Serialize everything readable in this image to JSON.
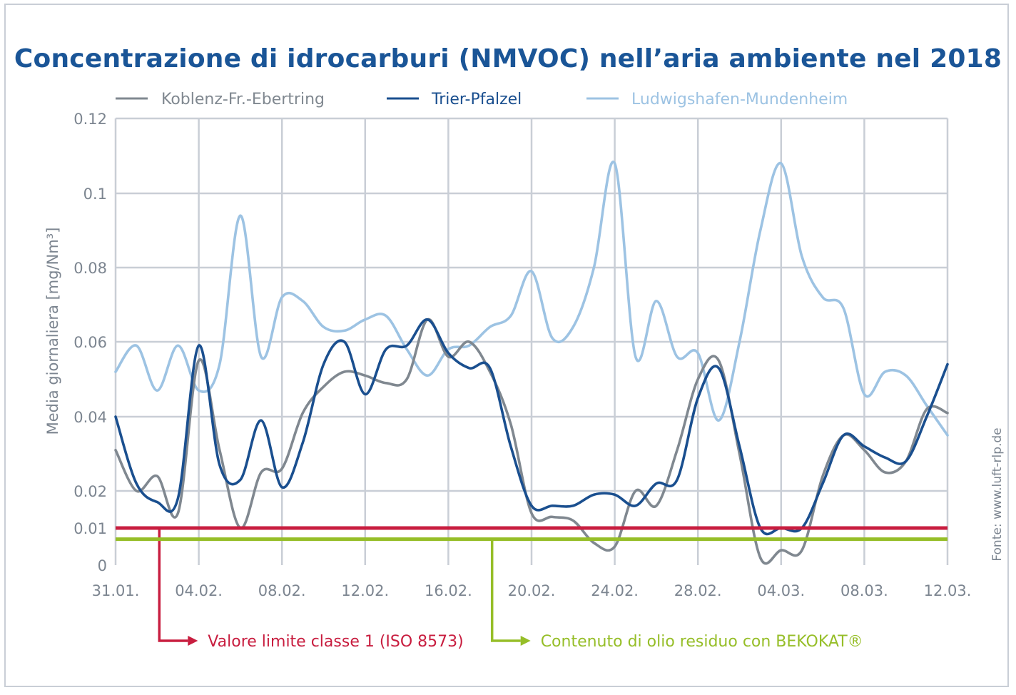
{
  "chart_data": {
    "type": "line",
    "title": "Concentrazione di idrocarburi (NMVOC) nell’aria ambiente nel 2018",
    "xlabel": "",
    "ylabel": "Media giornaliera [mg/Nm³]",
    "source": "Fonte: www.luft-rlp.de",
    "x_ticks": [
      "31.01.",
      "04.02.",
      "08.02.",
      "12.02.",
      "16.02.",
      "20.02.",
      "24.02.",
      "28.02.",
      "04.03.",
      "08.03.",
      "12.03."
    ],
    "y_ticks": [
      0,
      0.01,
      0.02,
      0.04,
      0.06,
      0.08,
      0.1,
      0.12
    ],
    "y_tick_labels": [
      "0",
      "0.01",
      "0.02",
      "0.04",
      "0.06",
      "0.08",
      "0.1",
      "0.12"
    ],
    "ylim": [
      0,
      0.12
    ],
    "grid": true,
    "legend_position": "top",
    "x": [
      "31.01.",
      "01.02.",
      "02.02.",
      "03.02.",
      "04.02.",
      "05.02.",
      "06.02.",
      "07.02.",
      "08.02.",
      "09.02.",
      "10.02.",
      "11.02.",
      "12.02.",
      "13.02.",
      "14.02.",
      "15.02.",
      "16.02.",
      "17.02.",
      "18.02.",
      "19.02.",
      "20.02.",
      "21.02.",
      "22.02.",
      "23.02.",
      "24.02.",
      "25.02.",
      "26.02.",
      "27.02.",
      "28.02.",
      "01.03.",
      "02.03.",
      "03.03.",
      "04.03.",
      "05.03.",
      "06.03.",
      "07.03.",
      "08.03.",
      "09.03.",
      "10.03.",
      "11.03.",
      "12.03."
    ],
    "series": [
      {
        "name": "Koblenz-Fr.-Ebertring",
        "color": "#808890",
        "values": [
          0.031,
          0.02,
          0.024,
          0.014,
          0.055,
          0.031,
          0.01,
          0.025,
          0.026,
          0.041,
          0.048,
          0.052,
          0.051,
          0.049,
          0.05,
          0.066,
          0.056,
          0.06,
          0.052,
          0.038,
          0.014,
          0.013,
          0.012,
          0.006,
          0.005,
          0.02,
          0.016,
          0.031,
          0.05,
          0.055,
          0.03,
          0.002,
          0.004,
          0.004,
          0.024,
          0.035,
          0.031,
          0.025,
          0.028,
          0.042,
          0.041
        ]
      },
      {
        "name": "Trier-Pfalzel",
        "color": "#1a4f8f",
        "values": [
          0.04,
          0.022,
          0.017,
          0.018,
          0.059,
          0.027,
          0.023,
          0.039,
          0.021,
          0.033,
          0.054,
          0.06,
          0.046,
          0.058,
          0.059,
          0.066,
          0.057,
          0.053,
          0.053,
          0.032,
          0.016,
          0.016,
          0.016,
          0.019,
          0.019,
          0.016,
          0.022,
          0.023,
          0.045,
          0.053,
          0.032,
          0.01,
          0.01,
          0.01,
          0.022,
          0.035,
          0.032,
          0.029,
          0.028,
          0.04,
          0.054
        ]
      },
      {
        "name": "Ludwigshafen-Mundenheim",
        "color": "#9dc3e3",
        "values": [
          0.052,
          0.059,
          0.047,
          0.059,
          0.047,
          0.054,
          0.094,
          0.056,
          0.072,
          0.071,
          0.064,
          0.063,
          0.066,
          0.067,
          0.058,
          0.051,
          0.058,
          0.059,
          0.064,
          0.067,
          0.079,
          0.061,
          0.064,
          0.08,
          0.108,
          0.056,
          0.071,
          0.056,
          0.057,
          0.039,
          0.06,
          0.09,
          0.108,
          0.083,
          0.072,
          0.069,
          0.046,
          0.052,
          0.051,
          0.043,
          0.035
        ]
      }
    ],
    "reference_lines": [
      {
        "value": 0.01,
        "label": "Valore limite classe 1 (ISO 8573)",
        "color": "#c81d3f",
        "marker_x": "02.02."
      },
      {
        "value": 0.007,
        "label": "Contenuto di olio residuo con BEKOKAT®",
        "color": "#96be28",
        "marker_x": "18.02."
      }
    ]
  },
  "colors": {
    "title": "#1a5597",
    "axis_text": "#7c8590",
    "grid": "#c9ced6"
  }
}
